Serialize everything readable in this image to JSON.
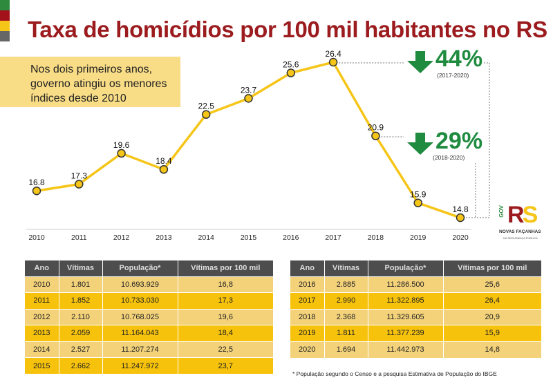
{
  "title": "Taxa de homicídios por 100 mil habitantes no RS",
  "note": [
    "Nos dois primeiros anos,",
    "governo atingiu os menores",
    "índices desde 2010"
  ],
  "colors": {
    "title": "#9b1b1e",
    "line": "#f5c518",
    "green": "#1e8b3f",
    "header": "#4d4d4d"
  },
  "strip_colors": [
    "#2e8b3e",
    "#a3111a",
    "#f5c518",
    "#666666"
  ],
  "chart_data": {
    "type": "line",
    "categories": [
      "2010",
      "2011",
      "2012",
      "2013",
      "2014",
      "2015",
      "2016",
      "2017",
      "2018",
      "2019",
      "2020"
    ],
    "values": [
      16.8,
      17.3,
      19.6,
      18.4,
      22.5,
      23.7,
      25.6,
      26.4,
      20.9,
      15.9,
      14.8
    ],
    "labels": [
      "16.8",
      "17.3",
      "19.6",
      "18.4",
      "22.5",
      "23.7",
      "25.6",
      "26.4",
      "20.9",
      "15.9",
      "14.8"
    ],
    "grid": false
  },
  "callouts": [
    {
      "pct": "44%",
      "range": "(2017-2020)",
      "icon": "arrow-down-icon"
    },
    {
      "pct": "29%",
      "range": "(2018-2020)",
      "icon": "arrow-down-icon"
    }
  ],
  "logo": {
    "gov": "GOV",
    "rs": "RS",
    "line1": "NOVAS FAÇANHAS",
    "line2": "NA SEGURANÇA PÚBLICA"
  },
  "table_headers": [
    "Ano",
    "Vítimas",
    "População*",
    "Vítimas por 100 mil"
  ],
  "table_left": [
    [
      "2010",
      "1.801",
      "10.693.929",
      "16,8"
    ],
    [
      "2011",
      "1.852",
      "10.733.030",
      "17,3"
    ],
    [
      "2012",
      "2.110",
      "10.768.025",
      "19,6"
    ],
    [
      "2013",
      "2.059",
      "11.164.043",
      "18,4"
    ],
    [
      "2014",
      "2.527",
      "11.207.274",
      "22,5"
    ],
    [
      "2015",
      "2.662",
      "11.247.972",
      "23,7"
    ]
  ],
  "table_right": [
    [
      "2016",
      "2.885",
      "11.286.500",
      "25,6"
    ],
    [
      "2017",
      "2.990",
      "11.322.895",
      "26,4"
    ],
    [
      "2018",
      "2.368",
      "11.329.605",
      "20,9"
    ],
    [
      "2019",
      "1.811",
      "11.377.239",
      "15,9"
    ],
    [
      "2020",
      "1.694",
      "11.442.973",
      "14,8"
    ]
  ],
  "footnote": "* População segundo o Censo e a pesquisa Estimativa de População do IBGE"
}
